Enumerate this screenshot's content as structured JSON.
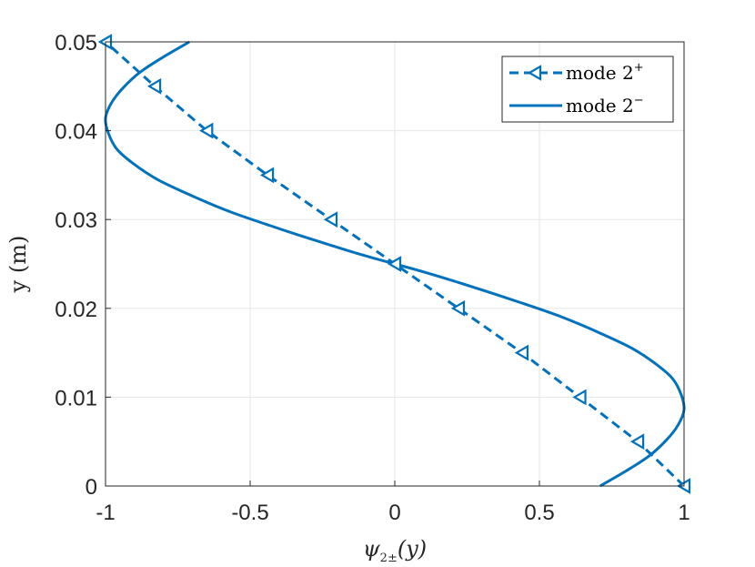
{
  "chart_data": {
    "type": "line",
    "xlabel_base": "ψ",
    "xlabel_sub": "2±",
    "xlabel_arg": "(y)",
    "ylabel": "y (m)",
    "xlim": [
      -1,
      1
    ],
    "ylim": [
      0,
      0.05
    ],
    "xticks": [
      -1,
      -0.5,
      0,
      0.5,
      1
    ],
    "xtick_labels": [
      "-1",
      "-0.5",
      "0",
      "0.5",
      "1"
    ],
    "yticks": [
      0,
      0.01,
      0.02,
      0.03,
      0.04,
      0.05
    ],
    "ytick_labels": [
      "0",
      "0.01",
      "0.02",
      "0.03",
      "0.04",
      "0.05"
    ],
    "grid": true,
    "legend_position": "top-right",
    "color": "#0072BD",
    "series": [
      {
        "name": "mode 2⁺",
        "label_base": "mode 2",
        "label_sup": "+",
        "style": "dashed",
        "marker": "left-triangle",
        "x": [
          1,
          0.84,
          0.64,
          0.44,
          0.22,
          0,
          -0.22,
          -0.44,
          -0.65,
          -0.83,
          -1
        ],
        "y": [
          0,
          0.005,
          0.01,
          0.015,
          0.02,
          0.025,
          0.03,
          0.035,
          0.04,
          0.045,
          0.05
        ]
      },
      {
        "name": "mode 2⁻",
        "label_base": "mode 2",
        "label_sup": "−",
        "style": "solid",
        "marker": "none",
        "x": [
          0.71,
          0.8,
          0.88,
          0.94,
          0.98,
          1.0,
          0.99,
          0.96,
          0.9,
          0.82,
          0.71,
          0.58,
          0.43,
          0.27,
          0.1,
          -0.1,
          -0.27,
          -0.43,
          -0.58,
          -0.71,
          -0.82,
          -0.9,
          -0.96,
          -0.99,
          -1.0,
          -0.98,
          -0.94,
          -0.88,
          -0.8,
          -0.71
        ],
        "y": [
          0,
          0.0017,
          0.0034,
          0.0052,
          0.0069,
          0.0086,
          0.0103,
          0.0121,
          0.0138,
          0.0155,
          0.0172,
          0.019,
          0.0207,
          0.0224,
          0.0241,
          0.0259,
          0.0276,
          0.0293,
          0.031,
          0.0328,
          0.0345,
          0.0362,
          0.0379,
          0.0397,
          0.0414,
          0.0431,
          0.0448,
          0.0466,
          0.0483,
          0.05
        ]
      }
    ]
  }
}
